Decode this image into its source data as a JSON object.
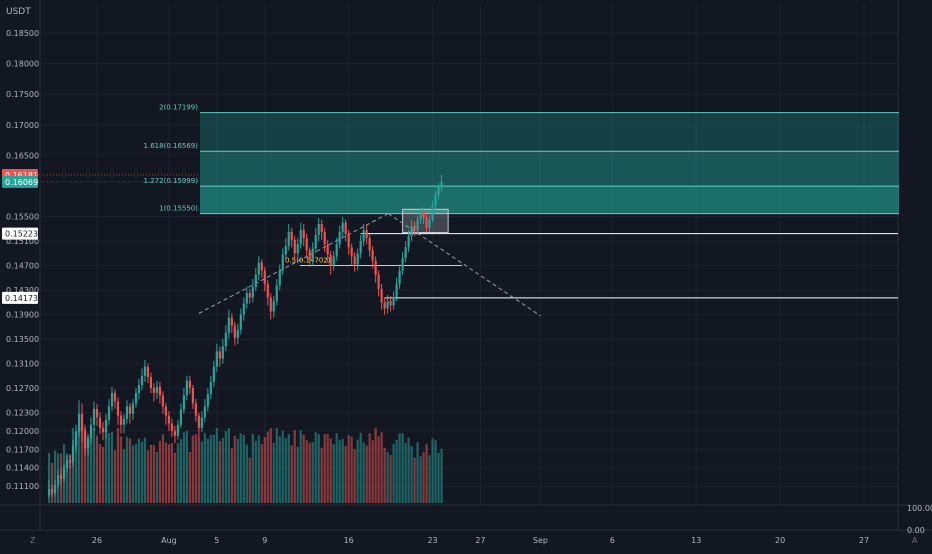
{
  "currency_label": "USDT",
  "colors": {
    "background": "#131722",
    "grid": "#1e2230",
    "bull": "#26a69a",
    "bear": "#ef5350",
    "fib_fill": "#1f8c83",
    "fib_line": "#5fd0c4",
    "yellow": "#f5d63d",
    "axis_text": "#b2b5be",
    "white": "#ffffff"
  },
  "price_labels": [
    {
      "text": "0.18500",
      "value": 0.185
    },
    {
      "text": "0.18000",
      "value": 0.18
    },
    {
      "text": "0.17500",
      "value": 0.175
    },
    {
      "text": "0.17000",
      "value": 0.17
    },
    {
      "text": "0.16500",
      "value": 0.165
    },
    {
      "text": "0.15500",
      "value": 0.155
    },
    {
      "text": "0.15100",
      "value": 0.151
    },
    {
      "text": "0.14700",
      "value": 0.147
    },
    {
      "text": "0.14300",
      "value": 0.143
    },
    {
      "text": "0.13900",
      "value": 0.139
    },
    {
      "text": "0.13500",
      "value": 0.135
    },
    {
      "text": "0.13100",
      "value": 0.131
    },
    {
      "text": "0.12700",
      "value": 0.127
    },
    {
      "text": "0.12300",
      "value": 0.123
    },
    {
      "text": "0.12000",
      "value": 0.12
    },
    {
      "text": "0.11700",
      "value": 0.117
    },
    {
      "text": "0.11400",
      "value": 0.114
    },
    {
      "text": "0.11100",
      "value": 0.111
    }
  ],
  "price_badges": [
    {
      "text": "0.16181",
      "value": 0.16181,
      "style": "bear"
    },
    {
      "text": "0.16069",
      "value": 0.16069,
      "style": "bull"
    },
    {
      "text": "0.15223",
      "value": 0.15223,
      "style": "white"
    },
    {
      "text": "0.14173",
      "value": 0.14173,
      "style": "white"
    }
  ],
  "time_labels": [
    {
      "text": "26",
      "day": 26
    },
    {
      "text": "Aug",
      "day": 32
    },
    {
      "text": "5",
      "day": 36
    },
    {
      "text": "9",
      "day": 40
    },
    {
      "text": "16",
      "day": 47
    },
    {
      "text": "23",
      "day": 54
    },
    {
      "text": "27",
      "day": 58
    },
    {
      "text": "Sep",
      "day": 63
    },
    {
      "text": "6",
      "day": 69
    },
    {
      "text": "13",
      "day": 76
    },
    {
      "text": "20",
      "day": 83
    },
    {
      "text": "27",
      "day": 90
    }
  ],
  "volume_scale_labels": [
    "100.00",
    "0.00"
  ],
  "corner_labels": {
    "left": "Z",
    "right": "A"
  },
  "fib_levels": [
    {
      "label": "2(0.17199)",
      "value": 0.17199
    },
    {
      "label": "1.618(0.16569)",
      "value": 0.16569
    },
    {
      "label": "1.272(0.15999)",
      "value": 0.15999
    },
    {
      "label": "1(0.15550)",
      "value": 0.1555
    }
  ],
  "fib_half": {
    "label": "0.5(0.14702)",
    "value": 0.14702
  },
  "horizontal_levels": [
    {
      "value": 0.15223,
      "from_day": 48,
      "to_day": 95
    },
    {
      "value": 0.14173,
      "from_day": 50,
      "to_day": 95
    }
  ],
  "zone_box": {
    "from_day": 51.5,
    "to_day": 55.3,
    "top": 0.1562,
    "bottom": 0.1524
  },
  "projection_lines": [
    {
      "from_day": 34.5,
      "from_value": 0.1392,
      "to_day": 50.3,
      "to_value": 0.1555
    },
    {
      "from_day": 50.3,
      "from_value": 0.1555,
      "to_day": 63,
      "to_value": 0.1388
    }
  ],
  "chart_data": {
    "type": "candlestick",
    "symbol_quote": "USDT",
    "x_axis": "date (day index, Aug 1 = 32)",
    "y_range": [
      0.1075,
      0.1895
    ],
    "candles": [
      [
        22.0,
        0.1095,
        0.1105,
        0.112,
        0.109
      ],
      [
        22.25,
        0.1105,
        0.1098,
        0.1112,
        0.1092
      ],
      [
        22.5,
        0.1098,
        0.1112,
        0.112,
        0.1094
      ],
      [
        22.75,
        0.1112,
        0.1128,
        0.1135,
        0.1106
      ],
      [
        23.0,
        0.1128,
        0.1122,
        0.1138,
        0.1112
      ],
      [
        23.25,
        0.1122,
        0.114,
        0.1146,
        0.1116
      ],
      [
        23.5,
        0.114,
        0.1152,
        0.116,
        0.1132
      ],
      [
        23.75,
        0.1152,
        0.1148,
        0.1162,
        0.1138
      ],
      [
        24.0,
        0.1148,
        0.1175,
        0.1185,
        0.1142
      ],
      [
        24.25,
        0.1175,
        0.1198,
        0.121,
        0.1166
      ],
      [
        24.5,
        0.1198,
        0.1228,
        0.125,
        0.119
      ],
      [
        24.75,
        0.1228,
        0.12,
        0.1245,
        0.1182
      ],
      [
        25.0,
        0.12,
        0.1172,
        0.121,
        0.116
      ],
      [
        25.25,
        0.1172,
        0.1188,
        0.1196,
        0.116
      ],
      [
        25.5,
        0.1188,
        0.121,
        0.1222,
        0.118
      ],
      [
        25.75,
        0.121,
        0.1236,
        0.1248,
        0.12
      ],
      [
        26.0,
        0.1236,
        0.1222,
        0.1244,
        0.1208
      ],
      [
        26.25,
        0.1222,
        0.1205,
        0.123,
        0.1195
      ],
      [
        26.5,
        0.1205,
        0.1198,
        0.1215,
        0.1185
      ],
      [
        26.75,
        0.1198,
        0.1218,
        0.1228,
        0.1188
      ],
      [
        27.0,
        0.1218,
        0.124,
        0.1252,
        0.121
      ],
      [
        27.25,
        0.124,
        0.1262,
        0.1272,
        0.1232
      ],
      [
        27.5,
        0.1262,
        0.1248,
        0.1268,
        0.1236
      ],
      [
        27.75,
        0.1248,
        0.1225,
        0.1255,
        0.121
      ],
      [
        28.0,
        0.1225,
        0.121,
        0.1232,
        0.1196
      ],
      [
        28.25,
        0.121,
        0.122,
        0.1228,
        0.1196
      ],
      [
        28.5,
        0.122,
        0.124,
        0.125,
        0.1212
      ],
      [
        28.75,
        0.124,
        0.1228,
        0.1246,
        0.1212
      ],
      [
        29.0,
        0.1228,
        0.1245,
        0.1252,
        0.1218
      ],
      [
        29.25,
        0.1245,
        0.1262,
        0.127,
        0.1238
      ],
      [
        29.5,
        0.1262,
        0.1275,
        0.1285,
        0.1252
      ],
      [
        29.75,
        0.1275,
        0.129,
        0.1302,
        0.1266
      ],
      [
        30.0,
        0.129,
        0.1305,
        0.1316,
        0.128
      ],
      [
        30.25,
        0.1305,
        0.1288,
        0.131,
        0.1278
      ],
      [
        30.5,
        0.1288,
        0.127,
        0.1295,
        0.1262
      ],
      [
        30.75,
        0.127,
        0.1262,
        0.1278,
        0.1248
      ],
      [
        31.0,
        0.1262,
        0.1272,
        0.1282,
        0.1252
      ],
      [
        31.25,
        0.1272,
        0.1258,
        0.128,
        0.1245
      ],
      [
        31.5,
        0.1258,
        0.124,
        0.1265,
        0.1228
      ],
      [
        31.75,
        0.124,
        0.1225,
        0.1246,
        0.121
      ],
      [
        32.0,
        0.1225,
        0.1212,
        0.1232,
        0.12
      ],
      [
        32.25,
        0.1212,
        0.12,
        0.122,
        0.119
      ],
      [
        32.5,
        0.12,
        0.1192,
        0.1208,
        0.118
      ],
      [
        32.75,
        0.1192,
        0.121,
        0.1218,
        0.1186
      ],
      [
        33.0,
        0.121,
        0.1235,
        0.1245,
        0.1205
      ],
      [
        33.25,
        0.1235,
        0.1258,
        0.127,
        0.1228
      ],
      [
        33.5,
        0.1258,
        0.1282,
        0.129,
        0.125
      ],
      [
        33.75,
        0.1282,
        0.127,
        0.129,
        0.126
      ],
      [
        34.0,
        0.127,
        0.1245,
        0.1275,
        0.1236
      ],
      [
        34.25,
        0.1245,
        0.1225,
        0.1252,
        0.1215
      ],
      [
        34.5,
        0.1225,
        0.1205,
        0.123,
        0.119
      ],
      [
        34.75,
        0.1205,
        0.1222,
        0.1232,
        0.1198
      ],
      [
        35.0,
        0.1222,
        0.124,
        0.1252,
        0.1215
      ],
      [
        35.25,
        0.124,
        0.126,
        0.127,
        0.1232
      ],
      [
        35.5,
        0.126,
        0.128,
        0.129,
        0.1252
      ],
      [
        35.75,
        0.128,
        0.1305,
        0.1315,
        0.1272
      ],
      [
        36.0,
        0.1305,
        0.133,
        0.1342,
        0.1296
      ],
      [
        36.25,
        0.133,
        0.1318,
        0.1338,
        0.1305
      ],
      [
        36.5,
        0.1318,
        0.1338,
        0.135,
        0.131
      ],
      [
        36.75,
        0.1338,
        0.136,
        0.1372,
        0.133
      ],
      [
        37.0,
        0.136,
        0.1385,
        0.1398,
        0.135
      ],
      [
        37.25,
        0.1385,
        0.1372,
        0.1392,
        0.136
      ],
      [
        37.5,
        0.1372,
        0.1352,
        0.1378,
        0.134
      ],
      [
        37.75,
        0.1352,
        0.1365,
        0.1375,
        0.1342
      ],
      [
        38.0,
        0.1365,
        0.139,
        0.14,
        0.1358
      ],
      [
        38.25,
        0.139,
        0.1408,
        0.1418,
        0.138
      ],
      [
        38.5,
        0.1408,
        0.1425,
        0.1436,
        0.14
      ],
      [
        38.75,
        0.1425,
        0.1418,
        0.1432,
        0.1408
      ],
      [
        39.0,
        0.1418,
        0.1435,
        0.1448,
        0.141
      ],
      [
        39.25,
        0.1435,
        0.1455,
        0.1466,
        0.1428
      ],
      [
        39.5,
        0.1455,
        0.1475,
        0.1485,
        0.1446
      ],
      [
        39.75,
        0.1475,
        0.1462,
        0.148,
        0.145
      ],
      [
        40.0,
        0.1462,
        0.144,
        0.1468,
        0.1428
      ],
      [
        40.25,
        0.144,
        0.1418,
        0.1446,
        0.1405
      ],
      [
        40.5,
        0.1418,
        0.1395,
        0.1425,
        0.1382
      ],
      [
        40.75,
        0.1395,
        0.1412,
        0.142,
        0.1385
      ],
      [
        41.0,
        0.1412,
        0.1438,
        0.1448,
        0.1405
      ],
      [
        41.25,
        0.1438,
        0.1462,
        0.1472,
        0.143
      ],
      [
        41.5,
        0.1462,
        0.1488,
        0.1498,
        0.1455
      ],
      [
        41.75,
        0.1488,
        0.1502,
        0.1515,
        0.148
      ],
      [
        42.0,
        0.1502,
        0.1525,
        0.1538,
        0.1495
      ],
      [
        42.25,
        0.1525,
        0.1512,
        0.1532,
        0.15
      ],
      [
        42.5,
        0.1512,
        0.149,
        0.1518,
        0.1478
      ],
      [
        42.75,
        0.149,
        0.1505,
        0.1515,
        0.1482
      ],
      [
        43.0,
        0.1505,
        0.1528,
        0.154,
        0.1498
      ],
      [
        43.25,
        0.1528,
        0.1515,
        0.1538,
        0.1502
      ],
      [
        43.5,
        0.1515,
        0.1495,
        0.1522,
        0.1485
      ],
      [
        43.75,
        0.1495,
        0.148,
        0.15,
        0.1468
      ],
      [
        44.0,
        0.148,
        0.1498,
        0.1508,
        0.147
      ],
      [
        44.25,
        0.1498,
        0.152,
        0.1532,
        0.149
      ],
      [
        44.5,
        0.152,
        0.1538,
        0.1548,
        0.151
      ],
      [
        44.75,
        0.1538,
        0.1525,
        0.1545,
        0.1512
      ],
      [
        45.0,
        0.1525,
        0.1505,
        0.1532,
        0.1492
      ],
      [
        45.25,
        0.1505,
        0.1488,
        0.1512,
        0.1475
      ],
      [
        45.5,
        0.1488,
        0.147,
        0.1494,
        0.1455
      ],
      [
        45.75,
        0.147,
        0.1485,
        0.1494,
        0.1462
      ],
      [
        46.0,
        0.1485,
        0.1505,
        0.1515,
        0.1478
      ],
      [
        46.25,
        0.1505,
        0.1525,
        0.1535,
        0.1498
      ],
      [
        46.5,
        0.1525,
        0.154,
        0.155,
        0.1515
      ],
      [
        46.75,
        0.154,
        0.1522,
        0.1545,
        0.151
      ],
      [
        47.0,
        0.1522,
        0.15,
        0.1528,
        0.1488
      ],
      [
        47.25,
        0.15,
        0.1485,
        0.1506,
        0.147
      ],
      [
        47.5,
        0.1485,
        0.1472,
        0.1492,
        0.146
      ],
      [
        47.75,
        0.1472,
        0.149,
        0.1498,
        0.1462
      ],
      [
        48.0,
        0.149,
        0.151,
        0.152,
        0.1482
      ],
      [
        48.25,
        0.151,
        0.1528,
        0.1538,
        0.1502
      ],
      [
        48.5,
        0.1528,
        0.1515,
        0.1536,
        0.1505
      ],
      [
        48.75,
        0.1515,
        0.1495,
        0.1522,
        0.1485
      ],
      [
        49.0,
        0.1495,
        0.1478,
        0.1502,
        0.1465
      ],
      [
        49.25,
        0.1478,
        0.1455,
        0.1485,
        0.1442
      ],
      [
        49.5,
        0.1455,
        0.1432,
        0.1462,
        0.142
      ],
      [
        49.75,
        0.1432,
        0.141,
        0.144,
        0.1398
      ],
      [
        50.0,
        0.141,
        0.14,
        0.1418,
        0.139
      ],
      [
        50.25,
        0.14,
        0.1412,
        0.1422,
        0.1392
      ],
      [
        50.5,
        0.1412,
        0.1405,
        0.142,
        0.1395
      ],
      [
        50.75,
        0.1405,
        0.1418,
        0.1428,
        0.1398
      ],
      [
        51.0,
        0.1418,
        0.144,
        0.145,
        0.1412
      ],
      [
        51.25,
        0.144,
        0.1462,
        0.1472,
        0.1432
      ],
      [
        51.5,
        0.1462,
        0.1482,
        0.1492,
        0.1455
      ],
      [
        51.75,
        0.1482,
        0.15,
        0.151,
        0.1475
      ],
      [
        52.0,
        0.15,
        0.1518,
        0.1528,
        0.1492
      ],
      [
        52.25,
        0.1518,
        0.1535,
        0.1545,
        0.151
      ],
      [
        52.5,
        0.1535,
        0.1528,
        0.1542,
        0.1518
      ],
      [
        52.75,
        0.1528,
        0.1545,
        0.1552,
        0.152
      ],
      [
        53.0,
        0.1545,
        0.1558,
        0.1565,
        0.1538
      ],
      [
        53.25,
        0.1558,
        0.1548,
        0.1565,
        0.1538
      ],
      [
        53.5,
        0.1548,
        0.1532,
        0.1555,
        0.1525
      ],
      [
        53.75,
        0.1532,
        0.1545,
        0.1552,
        0.1525
      ],
      [
        54.0,
        0.1545,
        0.1568,
        0.1576,
        0.154
      ],
      [
        54.25,
        0.1568,
        0.1585,
        0.1592,
        0.156
      ],
      [
        54.5,
        0.1585,
        0.1598,
        0.1606,
        0.1578
      ],
      [
        54.75,
        0.1598,
        0.1607,
        0.1618,
        0.159
      ]
    ]
  }
}
